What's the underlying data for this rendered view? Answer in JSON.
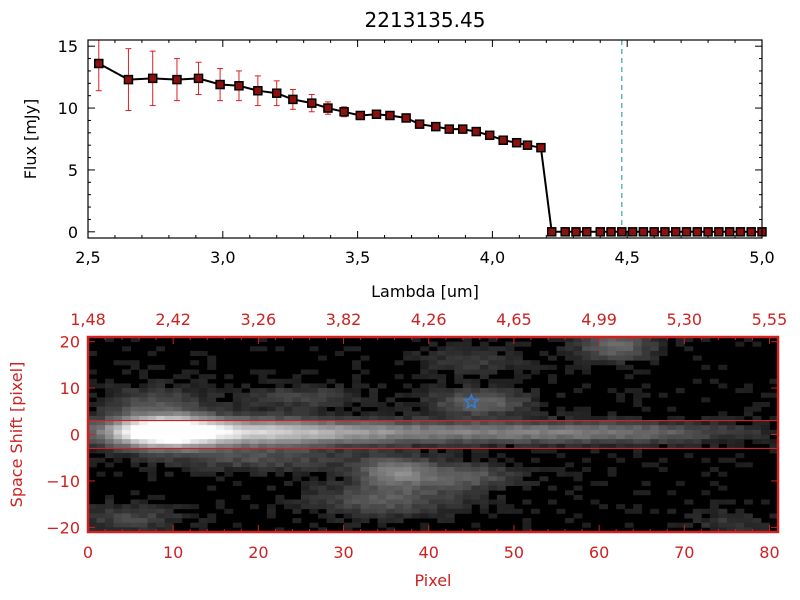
{
  "colors": {
    "panel_axes": "#000000",
    "error_bars": "#e02020",
    "markers_fill": "#8b1010",
    "marker_edge": "#000000",
    "dashed_line": "#3aa0c8",
    "image_frame": "#cc2222",
    "star": "#2f7fe0"
  },
  "chart_data": [
    {
      "type": "line",
      "title": "2213135.45",
      "xlabel": "Lambda [um]",
      "ylabel": "Flux [mJy]",
      "xlim": [
        2.5,
        5.0
      ],
      "ylim": [
        -0.5,
        15.5
      ],
      "xticks": [
        2.5,
        3.0,
        3.5,
        4.0,
        4.5,
        5.0
      ],
      "xtick_labels": [
        "2,5",
        "3,0",
        "3,5",
        "4,0",
        "4,5",
        "5,0"
      ],
      "yticks": [
        0,
        5,
        10,
        15
      ],
      "ytick_labels": [
        "0",
        "5",
        "10",
        "15"
      ],
      "grid": false,
      "vertical_dashed_line_x": 4.48,
      "series": [
        {
          "x": [
            2.54,
            2.65,
            2.74,
            2.83,
            2.91,
            2.99,
            3.06,
            3.13,
            3.2,
            3.26,
            3.33,
            3.39,
            3.45,
            3.51,
            3.57,
            3.62,
            3.68,
            3.73,
            3.79,
            3.84,
            3.89,
            3.94,
            3.99,
            4.04,
            4.09,
            4.13,
            4.18,
            4.22,
            4.27,
            4.31,
            4.35,
            4.4,
            4.44,
            4.48,
            4.52,
            4.56,
            4.6,
            4.64,
            4.68,
            4.72,
            4.76,
            4.8,
            4.84,
            4.88,
            4.92,
            4.96,
            5.0
          ],
          "y": [
            13.6,
            12.3,
            12.4,
            12.3,
            12.4,
            11.9,
            11.8,
            11.4,
            11.2,
            10.7,
            10.4,
            10.0,
            9.7,
            9.4,
            9.5,
            9.4,
            9.2,
            8.7,
            8.5,
            8.3,
            8.3,
            8.1,
            7.8,
            7.4,
            7.2,
            7.0,
            6.8,
            0.0,
            0.0,
            0.0,
            0.0,
            0.0,
            0.0,
            0.0,
            0.0,
            0.0,
            0.0,
            0.0,
            0.0,
            0.0,
            0.0,
            0.0,
            0.0,
            0.0,
            0.0,
            0.0,
            0.0
          ],
          "yerr": [
            2.2,
            2.5,
            2.2,
            1.7,
            1.3,
            1.3,
            1.2,
            1.2,
            1.0,
            0.8,
            0.7,
            0.5,
            0.4,
            0.3,
            0.3,
            0.3,
            0.3,
            0.3,
            0.3,
            0.3,
            0.3,
            0.3,
            0.3,
            0.3,
            0.3,
            0.3,
            0.3,
            0.2,
            0.2,
            0.2,
            0.2,
            0.2,
            0.2,
            0.2,
            0.2,
            0.2,
            0.2,
            0.2,
            0.2,
            0.2,
            0.2,
            0.2,
            0.2,
            0.2,
            0.2,
            0.2,
            0.2
          ]
        }
      ]
    },
    {
      "type": "heatmap",
      "xlabel": "Pixel",
      "ylabel": "Space Shift [pixel]",
      "xlim": [
        0,
        81
      ],
      "ylim": [
        -21,
        21
      ],
      "xticks": [
        0,
        10,
        20,
        30,
        40,
        50,
        60,
        70,
        80
      ],
      "xtick_labels": [
        "0",
        "10",
        "20",
        "30",
        "40",
        "50",
        "60",
        "70",
        "80"
      ],
      "yticks": [
        -20,
        -10,
        0,
        10,
        20
      ],
      "ytick_labels": [
        "−20",
        "−10",
        "0",
        "10",
        "20"
      ],
      "top_tick_labels": [
        "1,48",
        "2,42",
        "3,26",
        "3,82",
        "4,26",
        "4,65",
        "4,99",
        "5,30",
        "5,55"
      ],
      "horizontal_lines_y": [
        3,
        -3
      ],
      "star_marker": {
        "x": 45,
        "y": 7
      },
      "sources": [
        {
          "x": 9,
          "y": 0.5,
          "sx": 4,
          "sy": 2.2,
          "amp": 1.0
        },
        {
          "x": 17,
          "y": 0.5,
          "sx": 10,
          "sy": 2.0,
          "amp": 0.55
        },
        {
          "x": 38,
          "y": 0.5,
          "sx": 18,
          "sy": 1.6,
          "amp": 0.35
        },
        {
          "x": 62,
          "y": 0.5,
          "sx": 10,
          "sy": 1.5,
          "amp": 0.2
        },
        {
          "x": 36,
          "y": -8,
          "sx": 3,
          "sy": 2.2,
          "amp": 0.38
        },
        {
          "x": 44,
          "y": -9,
          "sx": 4,
          "sy": 2,
          "amp": 0.25
        },
        {
          "x": 46,
          "y": 7,
          "sx": 4,
          "sy": 2,
          "amp": 0.28
        },
        {
          "x": 62,
          "y": 19,
          "sx": 3,
          "sy": 2,
          "amp": 0.3
        },
        {
          "x": 35,
          "y": -14,
          "sx": 6,
          "sy": 2.5,
          "amp": 0.22
        },
        {
          "x": 8,
          "y": 6,
          "sx": 4,
          "sy": 3,
          "amp": 0.2
        },
        {
          "x": 20,
          "y": -5,
          "sx": 8,
          "sy": 2,
          "amp": 0.18
        },
        {
          "x": 25,
          "y": 8,
          "sx": 5,
          "sy": 2,
          "amp": 0.14
        },
        {
          "x": 5,
          "y": -18,
          "sx": 4,
          "sy": 2,
          "amp": 0.16
        },
        {
          "x": 45,
          "y": 16,
          "sx": 4,
          "sy": 2,
          "amp": 0.12
        },
        {
          "x": 75,
          "y": -19,
          "sx": 3,
          "sy": 2,
          "amp": 0.1
        }
      ]
    }
  ]
}
